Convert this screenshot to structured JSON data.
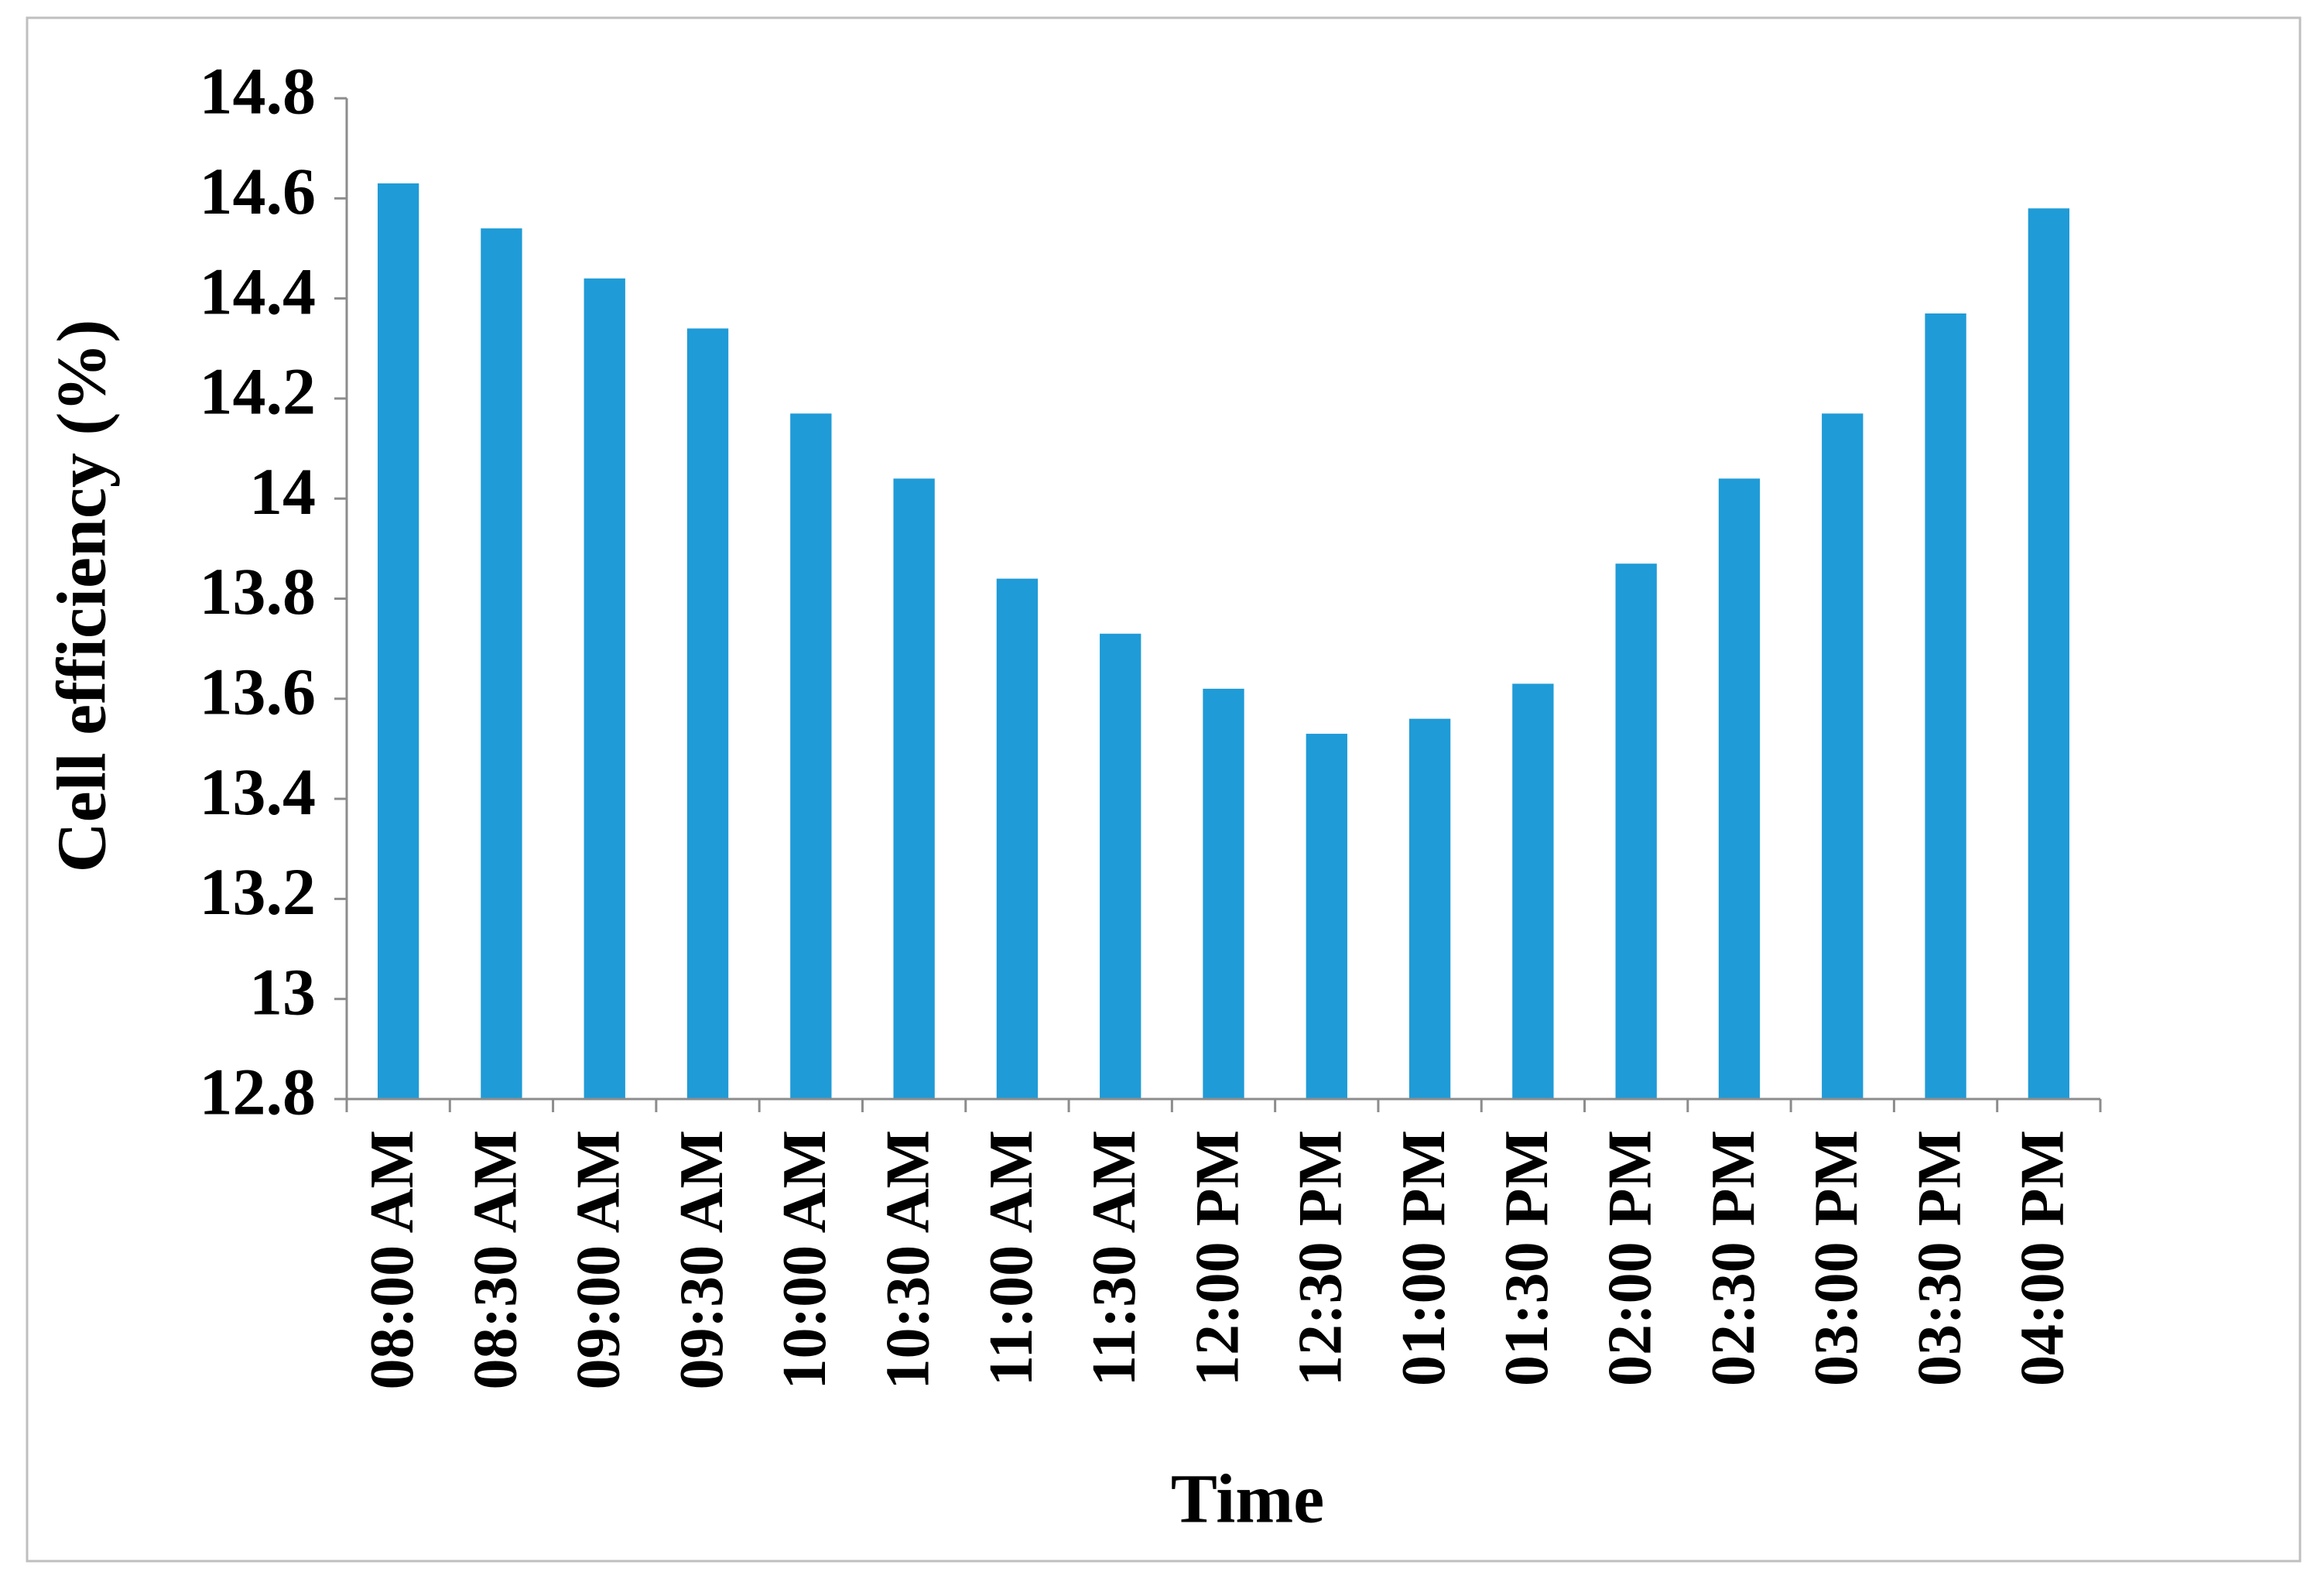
{
  "chart_data": {
    "type": "bar",
    "x_label": "Time",
    "y_label": "Cell efficiency (%)",
    "categories": [
      "08:00 AM",
      "08:30 AM",
      "09:00 AM",
      "09:30 AM",
      "10:00 AM",
      "10:30 AM",
      "11:00 AM",
      "11:30 AM",
      "12:00 PM",
      "12:30 PM",
      "01:00 PM",
      "01:30 PM",
      "02:00 PM",
      "02:30 PM",
      "03:00 PM",
      "03:30 PM",
      "04:00 PM"
    ],
    "values": [
      14.63,
      14.54,
      14.44,
      14.34,
      14.17,
      14.04,
      13.84,
      13.73,
      13.62,
      13.53,
      13.56,
      13.63,
      13.87,
      14.04,
      14.17,
      14.37,
      14.58
    ],
    "color": "#1f9bd7",
    "ylim": [
      12.8,
      14.8
    ],
    "yticks": [
      12.8,
      13,
      13.2,
      13.4,
      13.6,
      13.8,
      14,
      14.2,
      14.4,
      14.6,
      14.8
    ],
    "grid": false
  }
}
